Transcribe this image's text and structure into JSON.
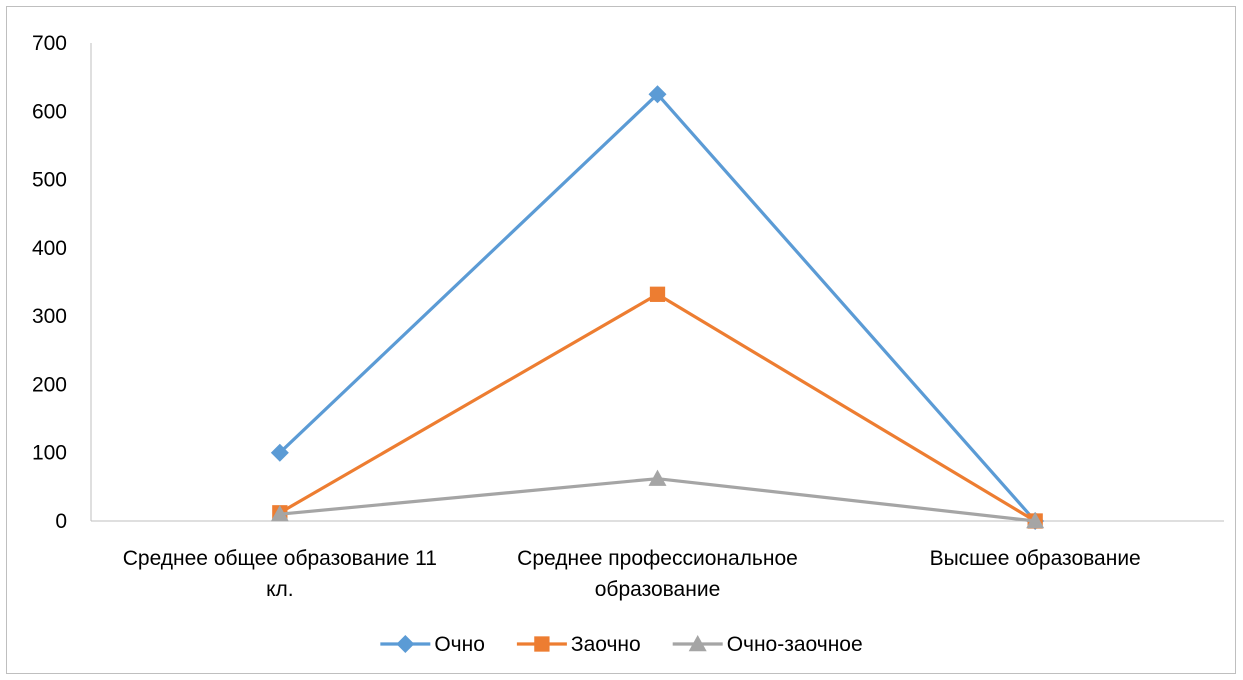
{
  "chart_data": {
    "type": "line",
    "title": "",
    "xlabel": "",
    "ylabel": "",
    "categories": [
      [
        "Среднее общее образование 11",
        "кл."
      ],
      [
        "Среднее профессиональное",
        "образование"
      ],
      [
        "Высшее образование"
      ]
    ],
    "ylim": [
      0,
      700
    ],
    "yticks": [
      0,
      100,
      200,
      300,
      400,
      500,
      600,
      700
    ],
    "grid": false,
    "legend_position": "bottom",
    "series": [
      {
        "name": "Очно",
        "values": [
          100,
          625,
          0
        ],
        "color": "#5b9bd5",
        "marker": "diamond"
      },
      {
        "name": "Заочно",
        "values": [
          12,
          332,
          0
        ],
        "color": "#ed7d31",
        "marker": "square"
      },
      {
        "name": "Очно-заочное",
        "values": [
          10,
          62,
          0
        ],
        "color": "#a5a5a5",
        "marker": "triangle"
      }
    ]
  }
}
